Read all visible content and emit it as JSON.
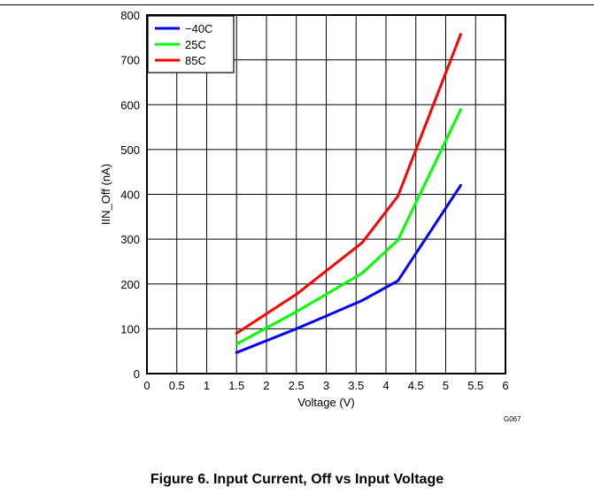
{
  "figure": {
    "caption": "Figure 6. Input Current, Off vs Input Voltage",
    "code": "G067"
  },
  "chart_data": {
    "type": "line",
    "xlabel": "Voltage (V)",
    "ylabel": "IIN_Off (nA)",
    "xlim": [
      0,
      6
    ],
    "ylim": [
      0,
      800
    ],
    "x_ticks": [
      0,
      0.5,
      1,
      1.5,
      2,
      2.5,
      3,
      3.5,
      4,
      4.5,
      5,
      5.5,
      6
    ],
    "y_ticks": [
      0,
      100,
      200,
      300,
      400,
      500,
      600,
      700,
      800
    ],
    "grid": true,
    "legend_position": "top-left",
    "series": [
      {
        "name": "−40C",
        "color": "#0000ff",
        "x": [
          1.5,
          2.5,
          3.6,
          4.2,
          5.25
        ],
        "y": [
          47,
          100,
          163,
          207,
          420
        ]
      },
      {
        "name": "25C",
        "color": "#00ff00",
        "x": [
          1.5,
          2.5,
          3.6,
          4.2,
          5.25
        ],
        "y": [
          66,
          138,
          224,
          298,
          589
        ]
      },
      {
        "name": "85C",
        "color": "#ff0000",
        "x": [
          1.5,
          2.5,
          3.6,
          4.2,
          5.25
        ],
        "y": [
          90,
          177,
          292,
          396,
          757
        ]
      }
    ]
  }
}
